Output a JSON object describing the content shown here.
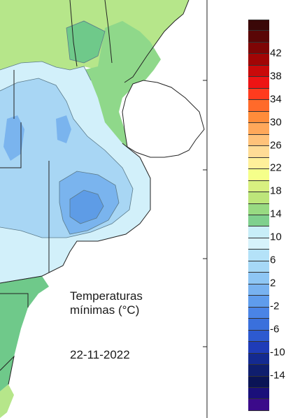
{
  "title_line1": "Temperaturas",
  "title_line2": "mínimas (°C)",
  "date": "22-11-2022",
  "legend": {
    "colors": [
      "#3a0808",
      "#5a0606",
      "#7e0505",
      "#a10505",
      "#c90a0a",
      "#ee1414",
      "#ff3b1e",
      "#ff6a2a",
      "#ff8c3a",
      "#ffa85a",
      "#ffc27a",
      "#ffdc96",
      "#fff09a",
      "#f5ff8a",
      "#d8f080",
      "#bde67a",
      "#98da82",
      "#7fd08e",
      "#c8eef8",
      "#d6f2fb",
      "#b4e2f8",
      "#a6d8f6",
      "#8ec6f4",
      "#78b2f0",
      "#5f9cec",
      "#4a84e6",
      "#3a70dc",
      "#2d5ad0",
      "#1f3cb8",
      "#142a90",
      "#0f1e6e",
      "#0a1456",
      "#1a0f7a",
      "#3b0a8a"
    ],
    "labels": [
      "42",
      "38",
      "34",
      "30",
      "26",
      "22",
      "18",
      "14",
      "10",
      "6",
      "2",
      "-2",
      "-6",
      "-10",
      "-14"
    ]
  },
  "map_colors": {
    "warm_green": "#b6e68a",
    "green": "#8fd88a",
    "mid_green": "#6fc98a",
    "light_blue": "#d2f0fa",
    "blue": "#a8d6f4",
    "deep_blue": "#7ab4ee",
    "darker_blue": "#5e9ce6",
    "land_outline": "#222222",
    "contour": "#5a7a8a"
  }
}
